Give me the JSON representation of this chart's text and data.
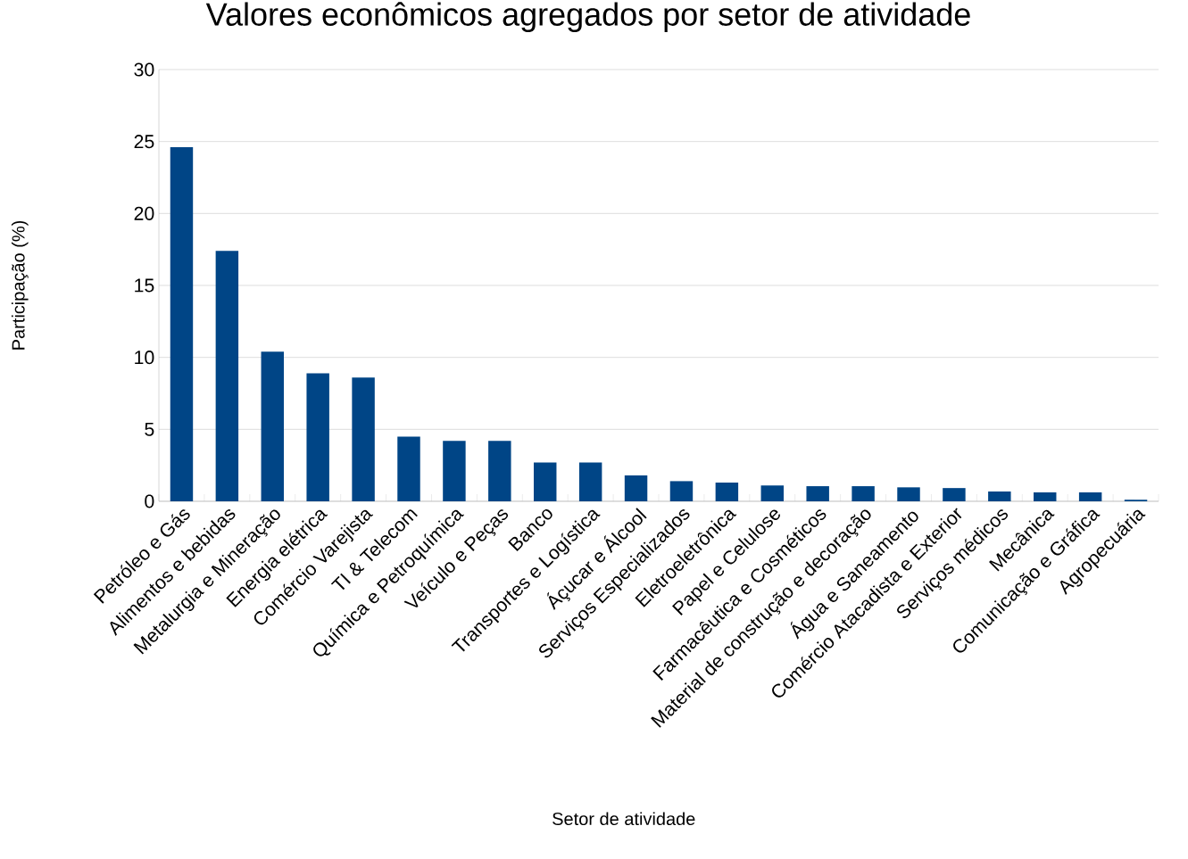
{
  "chart_data": {
    "type": "bar",
    "title": "Valores econômicos agregados por setor de atividade",
    "xlabel": "Setor de atividade",
    "ylabel": "Participação (%)",
    "categories": [
      "Petróleo e Gás",
      "Alimentos e bebidas",
      "Metalurgia e Mineração",
      "Energia elétrica",
      "Comércio Varejista",
      "TI & Telecom",
      "Química e Petroquímica",
      "Veículo e Peças",
      "Banco",
      "Transportes e Logística",
      "Áçucar e Álcool",
      "Serviços Especializados",
      "Eletroeletrônica",
      "Papel e Celulose",
      "Farmacêutica e Cosméticos",
      "Material de construção e decoração",
      "Água e Saneamento",
      "Comércio Atacadista e Exterior",
      "Serviços médicos",
      "Mecânica",
      "Comunicação e Gráfica",
      "Agropecuária"
    ],
    "values": [
      24.6,
      17.4,
      10.4,
      8.9,
      8.6,
      4.5,
      4.2,
      4.2,
      2.7,
      2.7,
      1.8,
      1.4,
      1.3,
      1.1,
      1.05,
      1.05,
      0.97,
      0.92,
      0.68,
      0.62,
      0.62,
      0.11
    ],
    "color": "#004586",
    "ylim": [
      0,
      30
    ],
    "yticks": [
      0,
      5,
      10,
      15,
      20,
      25,
      30
    ],
    "grid": "y"
  }
}
